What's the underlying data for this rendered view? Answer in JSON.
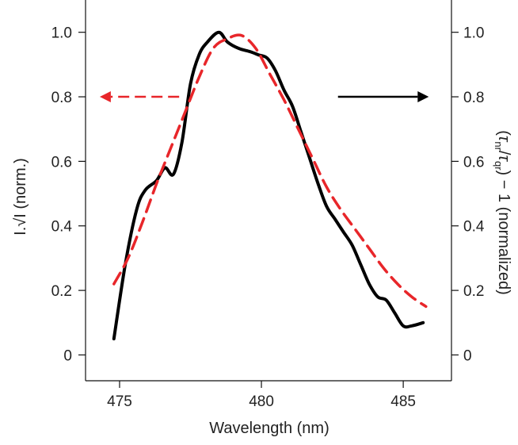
{
  "chart_data": {
    "type": "line",
    "xlabel": "Wavelength (nm)",
    "ylabel_left": "I.√I (norm.)",
    "ylabel_right_parts": {
      "open": "(",
      "tau1": "τ",
      "sub1": "nr",
      "slash": "/",
      "tau2": "τ",
      "sub2": "qr",
      "rest": ") − 1 (normalized)"
    },
    "xlim": [
      473.8,
      486.7
    ],
    "ylim": [
      -0.08,
      1.1
    ],
    "x_ticks": [
      475,
      480,
      485
    ],
    "x_tick_labels": [
      "475",
      "480",
      "485"
    ],
    "y_ticks": [
      0,
      0.2,
      0.4,
      0.6,
      0.8,
      1.0
    ],
    "y_tick_labels": [
      "0",
      "0.2",
      "0.4",
      "0.6",
      "0.8",
      "1.0"
    ],
    "y2_ticks": [
      0,
      0.2,
      0.4,
      0.6,
      0.8,
      1.0
    ],
    "y2_tick_labels": [
      "0",
      "0.2",
      "0.4",
      "0.6",
      "0.8",
      "1.0"
    ],
    "grid": false,
    "series": [
      {
        "axis": "left",
        "color": "#000000",
        "style": "solid",
        "x": [
          474.8,
          475.2,
          475.6,
          475.9,
          476.3,
          476.6,
          476.9,
          477.2,
          477.5,
          477.8,
          478.1,
          478.5,
          478.8,
          479.2,
          479.6,
          479.9,
          480.2,
          480.5,
          480.8,
          481.1,
          481.4,
          481.7,
          482.0,
          482.3,
          482.6,
          482.9,
          483.2,
          483.5,
          483.8,
          484.1,
          484.4,
          484.7,
          485.0,
          485.3,
          485.7
        ],
        "y": [
          0.05,
          0.28,
          0.45,
          0.51,
          0.54,
          0.58,
          0.56,
          0.66,
          0.84,
          0.93,
          0.97,
          1.0,
          0.97,
          0.95,
          0.94,
          0.93,
          0.92,
          0.88,
          0.82,
          0.77,
          0.69,
          0.61,
          0.53,
          0.46,
          0.42,
          0.38,
          0.34,
          0.28,
          0.22,
          0.18,
          0.17,
          0.13,
          0.09,
          0.09,
          0.1
        ]
      },
      {
        "axis": "right",
        "color": "#e8262a",
        "style": "dashed",
        "x": [
          474.8,
          475.3,
          475.8,
          476.3,
          476.8,
          477.3,
          477.8,
          478.3,
          478.8,
          479.3,
          479.8,
          480.3,
          480.8,
          481.3,
          481.8,
          482.3,
          482.8,
          483.3,
          483.8,
          484.3,
          484.8,
          485.3,
          485.8
        ],
        "y": [
          0.22,
          0.3,
          0.41,
          0.53,
          0.64,
          0.75,
          0.86,
          0.95,
          0.98,
          0.99,
          0.95,
          0.87,
          0.79,
          0.7,
          0.61,
          0.52,
          0.45,
          0.39,
          0.33,
          0.27,
          0.22,
          0.18,
          0.15
        ]
      }
    ],
    "annotations": [
      {
        "kind": "arrow",
        "direction": "left",
        "color": "#e8262a",
        "style": "dashed",
        "y_data": 0.8,
        "x_from": 477.1,
        "x_to": 474.3
      },
      {
        "kind": "arrow",
        "direction": "right",
        "color": "#000000",
        "style": "solid",
        "y_data": 0.8,
        "x_from": 482.7,
        "x_to": 485.9
      }
    ]
  }
}
